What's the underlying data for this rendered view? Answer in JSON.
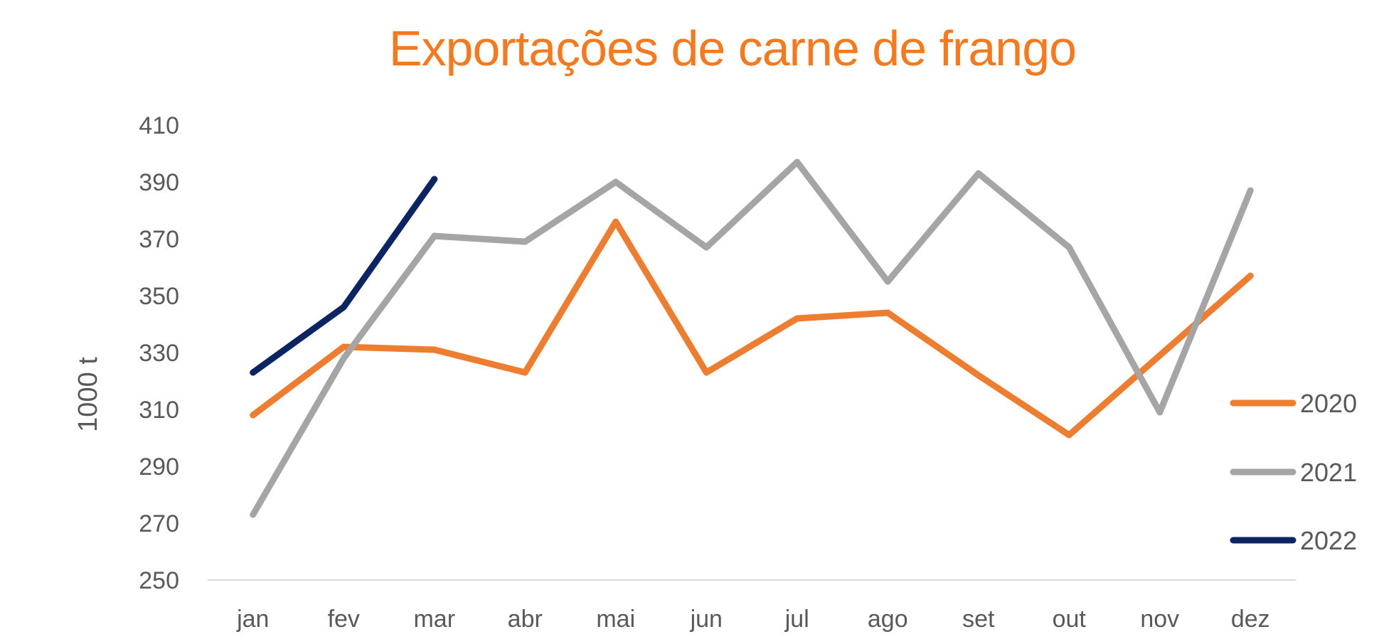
{
  "chart_data": {
    "type": "line",
    "title": "Exportações de carne de frango",
    "xlabel": "",
    "ylabel": "1000 t",
    "categories": [
      "jan",
      "fev",
      "mar",
      "abr",
      "mai",
      "jun",
      "jul",
      "ago",
      "set",
      "out",
      "nov",
      "dez"
    ],
    "yticks": [
      "410",
      "390",
      "370",
      "350",
      "330",
      "310",
      "290",
      "270",
      "250"
    ],
    "ylim": [
      250,
      410
    ],
    "grid": false,
    "legend_position": "right",
    "series": [
      {
        "name": "2020",
        "color": "#ED7D31",
        "values": [
          308,
          332,
          331,
          323,
          376,
          323,
          342,
          344,
          322,
          301,
          329,
          357
        ]
      },
      {
        "name": "2021",
        "color": "#A5A5A5",
        "values": [
          273,
          328,
          371,
          369,
          390,
          367,
          397,
          355,
          393,
          367,
          309,
          387
        ]
      },
      {
        "name": "2022",
        "color": "#0C2461",
        "values": [
          323,
          346,
          391,
          null,
          null,
          null,
          null,
          null,
          null,
          null,
          null,
          null
        ]
      }
    ]
  }
}
